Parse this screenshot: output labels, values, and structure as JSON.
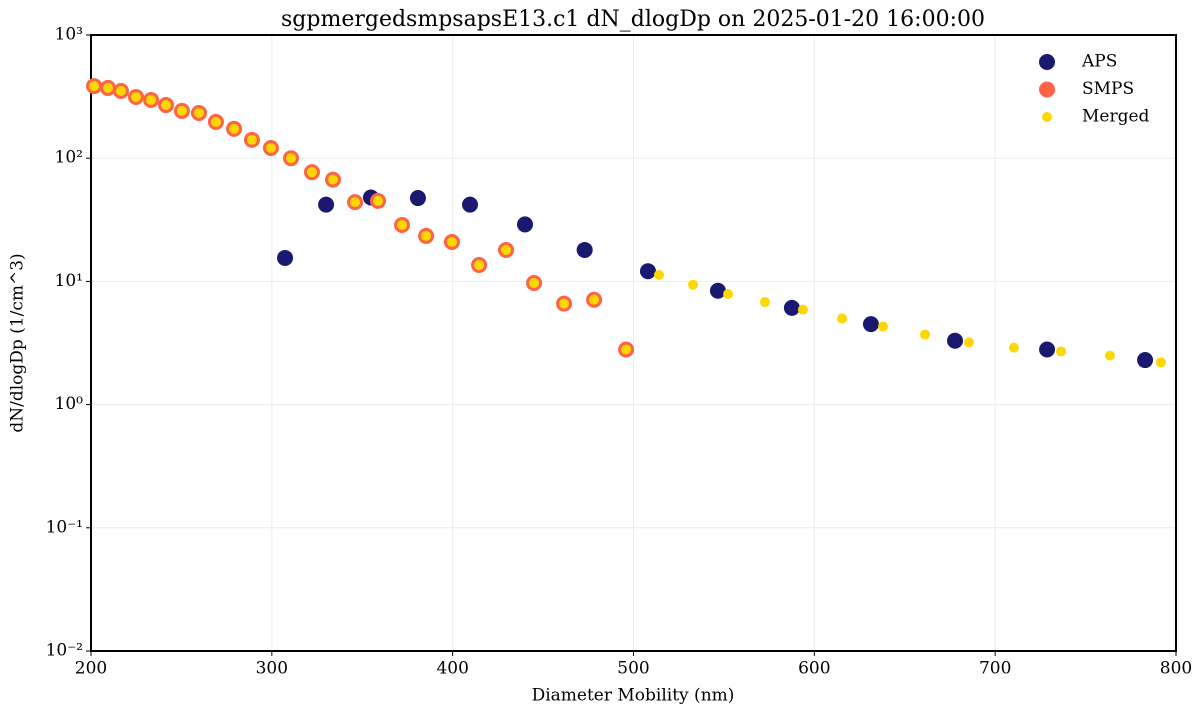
{
  "chart_data": {
    "type": "scatter",
    "title": "sgpmergedsmpsapsE13.c1 dN_dlogDp on 2025-01-20 16:00:00",
    "x_label": "Diameter Mobility (nm)",
    "y_label": "dN/dlogDp (1/cm^3)",
    "xlim": [
      200,
      800
    ],
    "xticks": [
      200,
      300,
      400,
      500,
      600,
      700,
      800
    ],
    "ylim": [
      0.01,
      1000
    ],
    "yticks": [
      {
        "value": 0.01,
        "label": "10⁻²"
      },
      {
        "value": 0.1,
        "label": "10⁻¹"
      },
      {
        "value": 1,
        "label": "10⁰"
      },
      {
        "value": 10,
        "label": "10¹"
      },
      {
        "value": 100,
        "label": "10²"
      },
      {
        "value": 1000,
        "label": "10³"
      }
    ],
    "y_scale": "log",
    "grid": true,
    "legend": "upper right",
    "series": [
      {
        "name": "APS",
        "color": "#191970",
        "size": 8,
        "x": [
          307.3,
          330,
          354.8,
          380.8,
          409.6,
          440,
          473,
          508,
          546.7,
          587.6,
          631.3,
          677.8,
          728.7,
          782.9
        ],
        "values": [
          15.5,
          42,
          48,
          47.5,
          42,
          29,
          18,
          12.1,
          8.4,
          6.1,
          4.5,
          3.3,
          2.8,
          2.3
        ]
      },
      {
        "name": "SMPS",
        "color": "#ff6347",
        "size": 8,
        "x": [
          201.7,
          209.4,
          216.6,
          224.9,
          233.2,
          241.5,
          250.3,
          259.7,
          269.1,
          279.1,
          289,
          299.5,
          310.6,
          322.2,
          333.8,
          346,
          358.7,
          372,
          385.3,
          399.6,
          414.6,
          429.5,
          445,
          461.6,
          478.2,
          495.9
        ],
        "values": [
          385,
          372,
          351,
          314,
          297,
          270,
          242,
          233,
          197,
          173,
          141,
          121,
          100,
          77,
          67,
          44,
          45,
          28.7,
          23.4,
          20.9,
          13.6,
          18,
          9.7,
          6.6,
          7.1,
          2.8
        ]
      },
      {
        "name": "Merged",
        "color": "#ffd700",
        "size": 5,
        "x": [
          201.7,
          209.4,
          216.6,
          224.9,
          233.2,
          241.5,
          250.3,
          259.7,
          269.1,
          279.1,
          289,
          299.5,
          310.6,
          322.2,
          333.8,
          346,
          358.7,
          372,
          385.3,
          399.6,
          414.6,
          429.5,
          445,
          461.6,
          478.2,
          495.9,
          514.1,
          532.9,
          552.3,
          572.7,
          593.7,
          615.3,
          638,
          661.2,
          685.5,
          710.4,
          736.4,
          763.5,
          791.7
        ],
        "values": [
          385,
          372,
          351,
          314,
          297,
          270,
          242,
          233,
          197,
          173,
          141,
          121,
          100,
          77,
          67,
          44,
          45,
          28.7,
          23.4,
          20.9,
          13.6,
          18,
          9.7,
          6.6,
          7.1,
          2.8,
          11.3,
          9.4,
          7.9,
          6.8,
          5.9,
          5.0,
          4.3,
          3.7,
          3.2,
          2.9,
          2.7,
          2.5,
          2.2
        ]
      }
    ]
  }
}
